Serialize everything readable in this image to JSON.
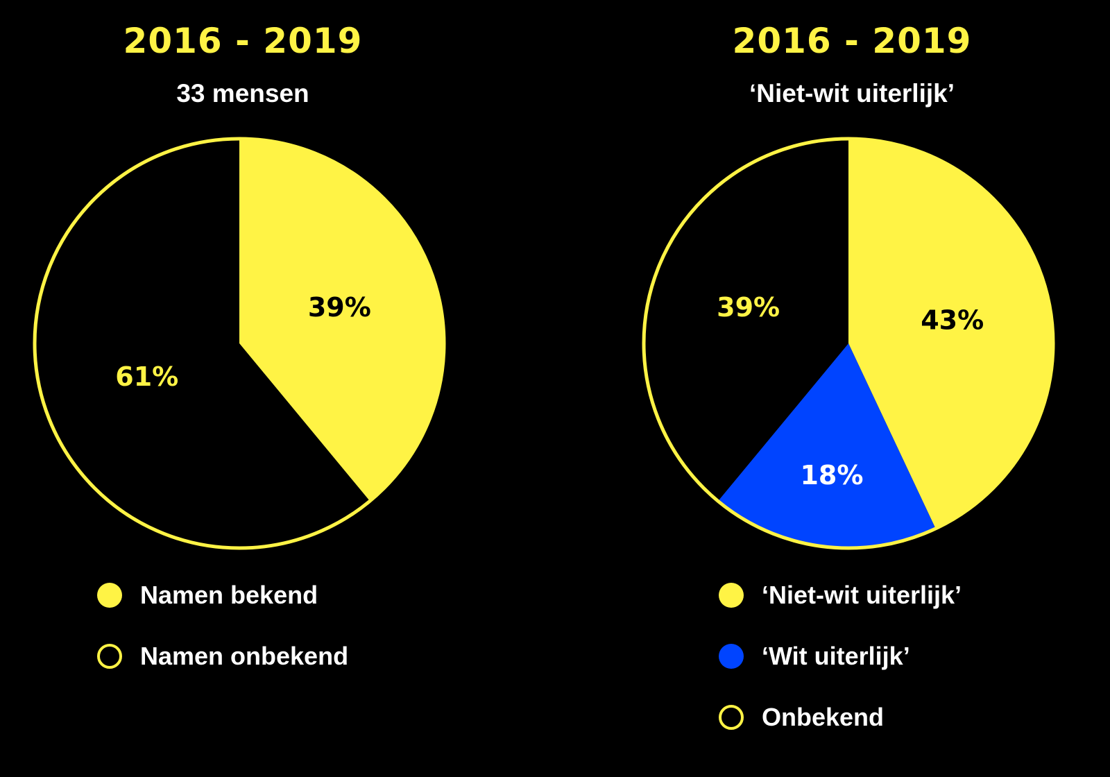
{
  "colors": {
    "yellow": "#fff345",
    "blue": "#0044ff",
    "black": "#000000",
    "white": "#ffffff"
  },
  "chart_data": [
    {
      "type": "pie",
      "title": "2016 - 2019",
      "subtitle": "33 mensen",
      "slices": [
        {
          "label": "Namen bekend",
          "value": 39,
          "value_label": "39%",
          "fill": "yellow",
          "text_color": "black"
        },
        {
          "label": "Namen onbekend",
          "value": 61,
          "value_label": "61%",
          "fill": "black",
          "text_color": "yellow"
        }
      ],
      "legend": [
        {
          "label": "Namen bekend",
          "swatch": "filled-yellow"
        },
        {
          "label": "Namen onbekend",
          "swatch": "outline-yellow"
        }
      ],
      "legend_position": "bottom"
    },
    {
      "type": "pie",
      "title": "2016 - 2019",
      "subtitle": "‘Niet-wit uiterlijk’",
      "slices": [
        {
          "label": "‘Niet-wit uiterlijk’",
          "value": 43,
          "value_label": "43%",
          "fill": "yellow",
          "text_color": "black"
        },
        {
          "label": "‘Wit uiterlijk’",
          "value": 18,
          "value_label": "18%",
          "fill": "blue",
          "text_color": "white"
        },
        {
          "label": "Onbekend",
          "value": 39,
          "value_label": "39%",
          "fill": "black",
          "text_color": "yellow"
        }
      ],
      "legend": [
        {
          "label": "‘Niet-wit uiterlijk’",
          "swatch": "filled-yellow"
        },
        {
          "label": "‘Wit uiterlijk’",
          "swatch": "filled-blue"
        },
        {
          "label": "Onbekend",
          "swatch": "outline-yellow"
        }
      ],
      "legend_position": "bottom"
    }
  ]
}
